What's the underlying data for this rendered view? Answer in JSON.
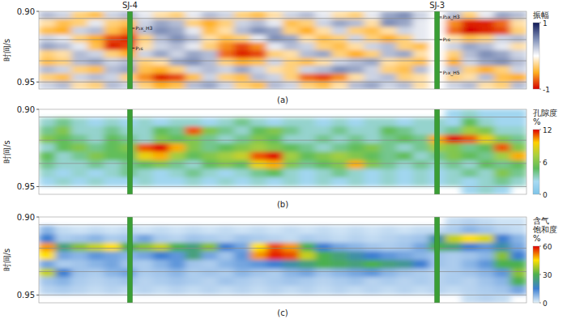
{
  "chart_data": [
    {
      "type": "heatmap",
      "label": "(a)",
      "ylabel": "时间/s",
      "xlim": [
        0,
        30
      ],
      "ylim": [
        0.9,
        0.955
      ],
      "yticks": [
        {
          "value": 0.9,
          "label": "0.90"
        },
        0.95
      ],
      "tick_labels": "y",
      "horizons": [
        0.905,
        0.92,
        0.935,
        0.95
      ],
      "wells": [
        {
          "name": "SJ-4",
          "x": 5.6,
          "picks": [
            {
              "label": "P₂x_H3",
              "time": 0.912
            },
            {
              "label": "P₂s",
              "time": 0.926
            }
          ]
        },
        {
          "name": "SJ-3",
          "x": 24.5,
          "picks": [
            {
              "label": "P₂x_H3",
              "time": 0.904
            },
            {
              "label": "P₂s",
              "time": 0.92
            },
            {
              "label": "P₂x_H5",
              "time": 0.943
            }
          ]
        }
      ],
      "cells": [
        [
          0.3,
          0.2,
          -0.3,
          -0.4,
          0.2,
          0.3,
          0.1,
          -0.2,
          -0.3,
          0.1,
          0.3,
          0.2,
          -0.3,
          -0.4,
          -0.2,
          0.2,
          0.3,
          0.1,
          -0.2,
          -0.3,
          0.1,
          0.4,
          0.5,
          0.2,
          0.0,
          0.3,
          -0.3,
          0.1,
          0.4,
          0.3
        ],
        [
          -0.2,
          -0.4,
          -0.3,
          0.1,
          -0.3,
          -0.4,
          0.2,
          0.4,
          0.3,
          -0.3,
          -0.5,
          -0.3,
          0.2,
          0.3,
          0.1,
          -0.4,
          -0.3,
          0.2,
          0.4,
          0.3,
          -0.2,
          0.5,
          0.4,
          0.1,
          0.0,
          -0.6,
          -0.9,
          -0.9,
          -0.7,
          -0.2
        ],
        [
          -0.4,
          -0.5,
          0.2,
          0.3,
          -0.4,
          -0.6,
          0.3,
          0.5,
          0.4,
          0.1,
          -0.4,
          -0.2,
          0.3,
          0.5,
          0.4,
          -0.3,
          -0.5,
          -0.2,
          0.2,
          -0.3,
          -0.4,
          -0.2,
          0.2,
          0.1,
          0.0,
          -0.7,
          -1.0,
          -0.9,
          -0.8,
          -0.3
        ],
        [
          0.2,
          0.1,
          -0.3,
          -0.5,
          -0.8,
          -0.9,
          -0.3,
          0.3,
          0.5,
          0.3,
          -0.2,
          -0.4,
          -0.3,
          0.1,
          0.5,
          0.4,
          -0.2,
          -0.4,
          -0.3,
          0.2,
          -0.3,
          -0.5,
          -0.3,
          0.1,
          0.0,
          -0.2,
          -0.4,
          -0.3,
          0.2,
          0.3
        ],
        [
          0.4,
          0.3,
          0.1,
          -0.4,
          -0.9,
          -0.8,
          -0.2,
          0.2,
          0.3,
          0.1,
          -0.3,
          -0.6,
          -0.8,
          -0.6,
          0.1,
          0.3,
          0.2,
          -0.3,
          -0.4,
          -0.2,
          0.2,
          0.3,
          -0.3,
          -0.4,
          0.0,
          0.2,
          0.4,
          0.3,
          0.1,
          -0.2
        ],
        [
          -0.3,
          -0.2,
          0.3,
          0.2,
          -0.3,
          -0.5,
          0.2,
          0.4,
          0.2,
          0.4,
          0.3,
          -0.7,
          -0.9,
          -0.8,
          -0.3,
          -0.2,
          0.3,
          0.4,
          -0.3,
          -0.5,
          -0.3,
          0.3,
          0.4,
          -0.2,
          0.0,
          -0.3,
          0.3,
          0.5,
          0.4,
          0.2
        ],
        [
          -0.4,
          -0.3,
          0.3,
          0.4,
          0.2,
          0.3,
          -0.3,
          -0.2,
          0.4,
          0.5,
          0.3,
          -0.3,
          -0.5,
          -0.4,
          0.2,
          -0.3,
          -0.4,
          -0.2,
          0.2,
          0.3,
          0.4,
          -0.2,
          -0.3,
          -0.4,
          0.0,
          -0.5,
          0.2,
          0.4,
          0.5,
          0.3
        ],
        [
          0.3,
          0.2,
          -0.3,
          -0.4,
          0.3,
          0.4,
          -0.4,
          -0.5,
          -0.3,
          0.2,
          0.3,
          0.2,
          0.4,
          0.2,
          -0.2,
          -0.3,
          0.2,
          0.3,
          0.5,
          0.4,
          0.2,
          -0.3,
          -0.4,
          0.3,
          0.0,
          0.3,
          -0.3,
          -0.5,
          -0.3,
          0.2
        ],
        [
          -0.3,
          -0.4,
          0.2,
          0.3,
          0.2,
          -0.3,
          -0.6,
          -0.9,
          -0.8,
          -0.4,
          0.2,
          -0.3,
          -0.4,
          0.3,
          0.2,
          -0.3,
          -0.7,
          -0.8,
          -0.6,
          -0.2,
          0.2,
          0.3,
          -0.3,
          -0.2,
          0.0,
          -0.3,
          -0.2,
          0.3,
          -0.4,
          -0.5
        ],
        [
          0.2,
          0.3,
          -0.2,
          -0.3,
          0.3,
          0.2,
          -0.3,
          -0.5,
          -0.4,
          0.3,
          0.4,
          0.2,
          -0.3,
          -0.4,
          0.3,
          0.2,
          -0.3,
          -0.4,
          -0.2,
          0.3,
          0.4,
          0.2,
          0.3,
          -0.2,
          0.0,
          0.2,
          0.3,
          -0.2,
          -0.3,
          0.3
        ]
      ],
      "color_bar": {
        "label": "振幅",
        "range": [
          -1,
          1
        ],
        "ticks": [
          1,
          -1
        ],
        "colors": [
          "#d40000",
          "#ffb020",
          "#ffffff",
          "#8090b8",
          "#101a58"
        ]
      }
    },
    {
      "type": "heatmap",
      "label": "(b)",
      "ylabel": "时间/s",
      "xlim": [
        0,
        30
      ],
      "ylim": [
        0.9,
        0.955
      ],
      "yticks": [
        {
          "value": 0.9,
          "label": "0.90"
        },
        0.95
      ],
      "tick_labels": "y",
      "horizons": [
        0.905,
        0.92,
        0.935,
        0.95
      ],
      "wells": [
        {
          "x": 5.6
        },
        {
          "x": 24.5
        }
      ],
      "cells": [
        [
          null,
          null,
          null,
          null,
          null,
          null,
          null,
          null,
          null,
          null,
          null,
          null,
          null,
          null,
          null,
          null,
          null,
          null,
          null,
          null,
          null,
          null,
          null,
          null,
          null,
          2,
          3,
          2,
          2,
          2
        ],
        [
          3,
          4,
          3,
          2,
          3,
          2,
          3,
          2,
          3,
          3,
          2,
          3,
          4,
          3,
          2,
          3,
          3,
          2,
          3,
          2,
          3,
          3,
          2,
          3,
          3,
          2,
          5,
          3,
          2,
          2
        ],
        [
          4,
          6,
          3,
          3,
          4,
          3,
          3,
          5,
          4,
          11,
          6,
          4,
          3,
          5,
          6,
          4,
          3,
          3,
          4,
          3,
          3,
          5,
          4,
          3,
          3,
          4,
          7,
          6,
          3,
          3
        ],
        [
          6,
          5,
          4,
          3,
          5,
          4,
          3,
          6,
          5,
          6,
          4,
          3,
          4,
          6,
          5,
          3,
          3,
          4,
          3,
          4,
          3,
          4,
          5,
          4,
          10,
          12,
          11,
          9,
          6,
          4
        ],
        [
          3,
          5,
          6,
          4,
          5,
          6,
          11,
          12,
          10,
          6,
          4,
          5,
          6,
          7,
          6,
          5,
          4,
          3,
          4,
          5,
          6,
          4,
          3,
          4,
          7,
          6,
          4,
          5,
          11,
          6
        ],
        [
          5,
          3,
          4,
          6,
          5,
          5,
          9,
          10,
          7,
          5,
          6,
          7,
          8,
          11,
          12,
          7,
          5,
          6,
          7,
          6,
          5,
          4,
          5,
          3,
          4,
          6,
          5,
          4,
          7,
          10
        ],
        [
          4,
          3,
          3,
          4,
          3,
          4,
          5,
          6,
          4,
          3,
          5,
          6,
          5,
          9,
          10,
          6,
          4,
          5,
          6,
          10,
          6,
          4,
          3,
          4,
          3,
          4,
          3,
          5,
          4,
          5
        ],
        [
          3,
          2,
          3,
          2,
          3,
          4,
          3,
          2,
          3,
          4,
          3,
          2,
          3,
          4,
          5,
          3,
          2,
          3,
          4,
          3,
          2,
          3,
          2,
          3,
          2,
          3,
          4,
          3,
          6,
          4
        ],
        [
          2,
          3,
          2,
          3,
          2,
          2,
          3,
          2,
          2,
          3,
          2,
          3,
          2,
          3,
          2,
          3,
          2,
          3,
          2,
          3,
          2,
          3,
          2,
          3,
          2,
          3,
          2,
          3,
          4,
          3
        ],
        [
          null,
          null,
          null,
          null,
          null,
          null,
          null,
          null,
          null,
          null,
          null,
          null,
          null,
          null,
          null,
          null,
          null,
          null,
          null,
          null,
          null,
          null,
          null,
          null,
          null,
          null,
          2,
          3,
          2,
          null
        ]
      ],
      "color_bar": {
        "label": "孔隙度",
        "unit": "%",
        "range": [
          0,
          12
        ],
        "ticks": [
          12,
          6,
          0
        ],
        "colors": [
          "#7cc4e8",
          "#a8daf2",
          "#5cbc5c",
          "#a8d040",
          "#ffd000",
          "#e00000"
        ]
      }
    },
    {
      "type": "heatmap",
      "label": "(c)",
      "ylabel": "时间/s",
      "xlim": [
        0,
        30
      ],
      "ylim": [
        0.9,
        0.955
      ],
      "yticks": [
        {
          "value": 0.9,
          "label": "0.90"
        },
        0.95
      ],
      "tick_labels": "y",
      "horizons": [
        0.905,
        0.92,
        0.935,
        0.95
      ],
      "wells": [
        {
          "x": 5.6
        },
        {
          "x": 24.5
        }
      ],
      "cells": [
        [
          null,
          null,
          null,
          null,
          null,
          null,
          null,
          null,
          null,
          null,
          null,
          null,
          null,
          null,
          null,
          null,
          null,
          null,
          null,
          null,
          null,
          null,
          null,
          null,
          null,
          3,
          4,
          3,
          2,
          2
        ],
        [
          8,
          3,
          2,
          3,
          2,
          3,
          2,
          3,
          2,
          3,
          2,
          3,
          2,
          3,
          2,
          3,
          2,
          3,
          2,
          3,
          2,
          3,
          2,
          3,
          3,
          5,
          8,
          6,
          4,
          3
        ],
        [
          15,
          5,
          6,
          8,
          5,
          6,
          10,
          5,
          4,
          6,
          5,
          4,
          6,
          5,
          4,
          3,
          5,
          4,
          3,
          4,
          3,
          4,
          5,
          6,
          20,
          40,
          45,
          42,
          15,
          8
        ],
        [
          50,
          25,
          35,
          40,
          45,
          30,
          35,
          40,
          30,
          25,
          35,
          15,
          10,
          45,
          55,
          50,
          30,
          15,
          10,
          8,
          6,
          5,
          6,
          10,
          30,
          25,
          15,
          12,
          20,
          10
        ],
        [
          45,
          10,
          8,
          12,
          10,
          8,
          10,
          15,
          12,
          25,
          10,
          6,
          12,
          50,
          58,
          55,
          40,
          30,
          25,
          20,
          15,
          12,
          10,
          8,
          6,
          5,
          6,
          8,
          35,
          15
        ],
        [
          10,
          5,
          6,
          8,
          10,
          6,
          5,
          8,
          12,
          6,
          5,
          8,
          10,
          12,
          15,
          20,
          25,
          30,
          28,
          25,
          30,
          25,
          22,
          15,
          6,
          5,
          8,
          12,
          30,
          30
        ],
        [
          40,
          15,
          6,
          5,
          8,
          10,
          5,
          6,
          8,
          5,
          6,
          5,
          8,
          6,
          5,
          8,
          10,
          6,
          8,
          10,
          12,
          8,
          6,
          5,
          4,
          5,
          6,
          8,
          12,
          35
        ],
        [
          6,
          8,
          5,
          4,
          5,
          6,
          4,
          5,
          6,
          5,
          4,
          6,
          5,
          4,
          5,
          6,
          5,
          4,
          5,
          6,
          4,
          5,
          4,
          5,
          4,
          5,
          4,
          6,
          8,
          30
        ],
        [
          4,
          5,
          4,
          3,
          4,
          3,
          4,
          3,
          4,
          3,
          4,
          3,
          4,
          3,
          4,
          3,
          4,
          3,
          4,
          3,
          4,
          3,
          4,
          3,
          4,
          3,
          4,
          5,
          6,
          10
        ],
        [
          null,
          null,
          null,
          null,
          null,
          null,
          null,
          null,
          null,
          null,
          null,
          null,
          null,
          null,
          null,
          null,
          null,
          null,
          null,
          null,
          null,
          null,
          null,
          null,
          null,
          null,
          3,
          4,
          3,
          null
        ]
      ],
      "color_bar": {
        "label": "含气饱和度",
        "unit": "%",
        "range": [
          0,
          60
        ],
        "ticks": [
          60,
          30,
          0
        ],
        "colors": [
          "#e4f2fa",
          "#3c7fd2",
          "#4cb050",
          "#ffe000",
          "#e00000"
        ]
      }
    }
  ]
}
